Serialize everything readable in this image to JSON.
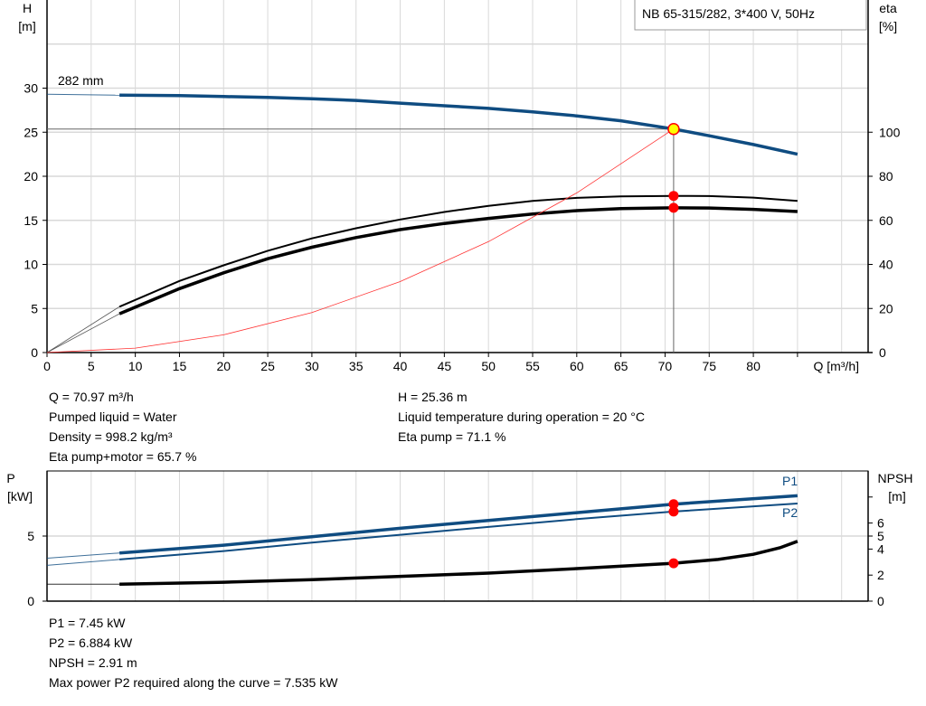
{
  "chart_data": [
    {
      "type": "line",
      "title": "NB 65-315/282, 3*400 V, 50Hz",
      "xlabel": "Q [m³/h]",
      "ylabel": [
        "H",
        "[m]"
      ],
      "y2label": [
        "eta",
        "[%]"
      ],
      "xlim": [
        0,
        93
      ],
      "ylim": [
        0,
        40
      ],
      "y2lim": [
        0,
        160
      ],
      "grid": true,
      "x_ticks": [
        "0",
        "5",
        "10",
        "15",
        "20",
        "25",
        "30",
        "35",
        "40",
        "45",
        "50",
        "55",
        "60",
        "65",
        "70",
        "75",
        "80"
      ],
      "y_ticks": [
        "0",
        "5",
        "10",
        "15",
        "20",
        "25",
        "30"
      ],
      "y2_ticks": [
        "0",
        "20",
        "40",
        "60",
        "80",
        "100"
      ],
      "impeller_label": "282 mm",
      "operating_point": {
        "Q": 70.97,
        "H": 25.36,
        "eta_pump": 71.1,
        "eta_pump_motor": 65.7
      },
      "series": [
        {
          "key": "H",
          "axis": "left",
          "color": "#0f4c81",
          "x": [
            0,
            8.2,
            15,
            20,
            25,
            30,
            35,
            40,
            45,
            50,
            55,
            60,
            65,
            70.97,
            75,
            80,
            85
          ],
          "y": [
            29.3,
            29.2,
            29.15,
            29.05,
            28.95,
            28.8,
            28.6,
            28.3,
            28.0,
            27.7,
            27.3,
            26.85,
            26.3,
            25.36,
            24.6,
            23.6,
            22.5
          ]
        },
        {
          "key": "eta_pump",
          "axis": "right",
          "color": "#000000",
          "x": [
            8.2,
            15,
            20,
            25,
            30,
            35,
            40,
            45,
            50,
            55,
            60,
            65,
            70.97,
            75,
            80,
            85
          ],
          "y": [
            20.8,
            32.5,
            39.6,
            46.2,
            51.8,
            56.4,
            60.4,
            63.8,
            66.6,
            68.8,
            70.2,
            70.9,
            71.1,
            71.0,
            70.3,
            68.8
          ]
        },
        {
          "key": "eta_pump_motor",
          "axis": "right",
          "color": "#000000",
          "x": [
            8.2,
            15,
            20,
            25,
            30,
            35,
            40,
            45,
            50,
            55,
            60,
            65,
            70.97,
            75,
            80,
            85
          ],
          "y": [
            17.6,
            29.0,
            36.2,
            42.6,
            47.8,
            52.2,
            55.8,
            58.6,
            60.9,
            62.9,
            64.4,
            65.3,
            65.7,
            65.6,
            65.0,
            64.0
          ]
        },
        {
          "key": "system",
          "axis": "left",
          "color": "#ff3333",
          "x": [
            0,
            10,
            20,
            30,
            40,
            50,
            60,
            70.97
          ],
          "y": [
            0,
            0.5,
            2.01,
            4.53,
            8.05,
            12.58,
            18.11,
            25.36
          ]
        }
      ]
    },
    {
      "type": "line",
      "ylabel": [
        "P",
        "[kW]"
      ],
      "y2label": [
        "NPSH",
        "[m]"
      ],
      "xlim": [
        0,
        93
      ],
      "ylim": [
        0,
        10
      ],
      "y2lim": [
        0,
        10
      ],
      "grid": true,
      "y_ticks": [
        "0",
        "5"
      ],
      "y2_ticks": [
        "0",
        "2",
        "4",
        "5",
        "6"
      ],
      "y2_extra_tick": 8,
      "operating_point": {
        "Q": 70.97,
        "P1": 7.45,
        "P2": 6.884,
        "NPSH": 2.91
      },
      "series": [
        {
          "name": "P1",
          "color": "#0f4c81",
          "x": [
            0,
            8.2,
            20,
            30,
            40,
            50,
            60,
            70.97,
            85
          ],
          "y": [
            3.3,
            3.7,
            4.3,
            4.95,
            5.6,
            6.2,
            6.8,
            7.45,
            8.1
          ]
        },
        {
          "name": "P2",
          "color": "#0f4c81",
          "x": [
            0,
            8.2,
            20,
            30,
            40,
            50,
            60,
            70.97,
            85
          ],
          "y": [
            2.75,
            3.2,
            3.85,
            4.5,
            5.1,
            5.7,
            6.3,
            6.884,
            7.5
          ]
        },
        {
          "key": "NPSH",
          "color": "#000000",
          "x": [
            0,
            8.2,
            20,
            30,
            40,
            50,
            60,
            70.97,
            76,
            80,
            83,
            85
          ],
          "y": [
            1.3,
            1.3,
            1.45,
            1.65,
            1.9,
            2.15,
            2.5,
            2.91,
            3.2,
            3.6,
            4.1,
            4.6
          ]
        }
      ]
    }
  ],
  "info_top": {
    "left": [
      "Q = 70.97 m³/h",
      "Pumped liquid = Water",
      "Density = 998.2 kg/m³",
      "Eta pump+motor = 65.7 %"
    ],
    "right": [
      "H = 25.36 m",
      "Liquid temperature during operation = 20 °C",
      "Eta pump = 71.1 %"
    ]
  },
  "info_bottom": [
    "P1 = 7.45 kW",
    "P2 = 6.884 kW",
    "NPSH = 2.91 m",
    "Max power P2 required along the curve = 7.535 kW"
  ],
  "colors": {
    "curve_blue": "#0f4c81",
    "marker_red": "#ff0000",
    "marker_yellow": "#ffff00",
    "system_curve": "#ff3333",
    "grid": "#d9d9d9"
  }
}
